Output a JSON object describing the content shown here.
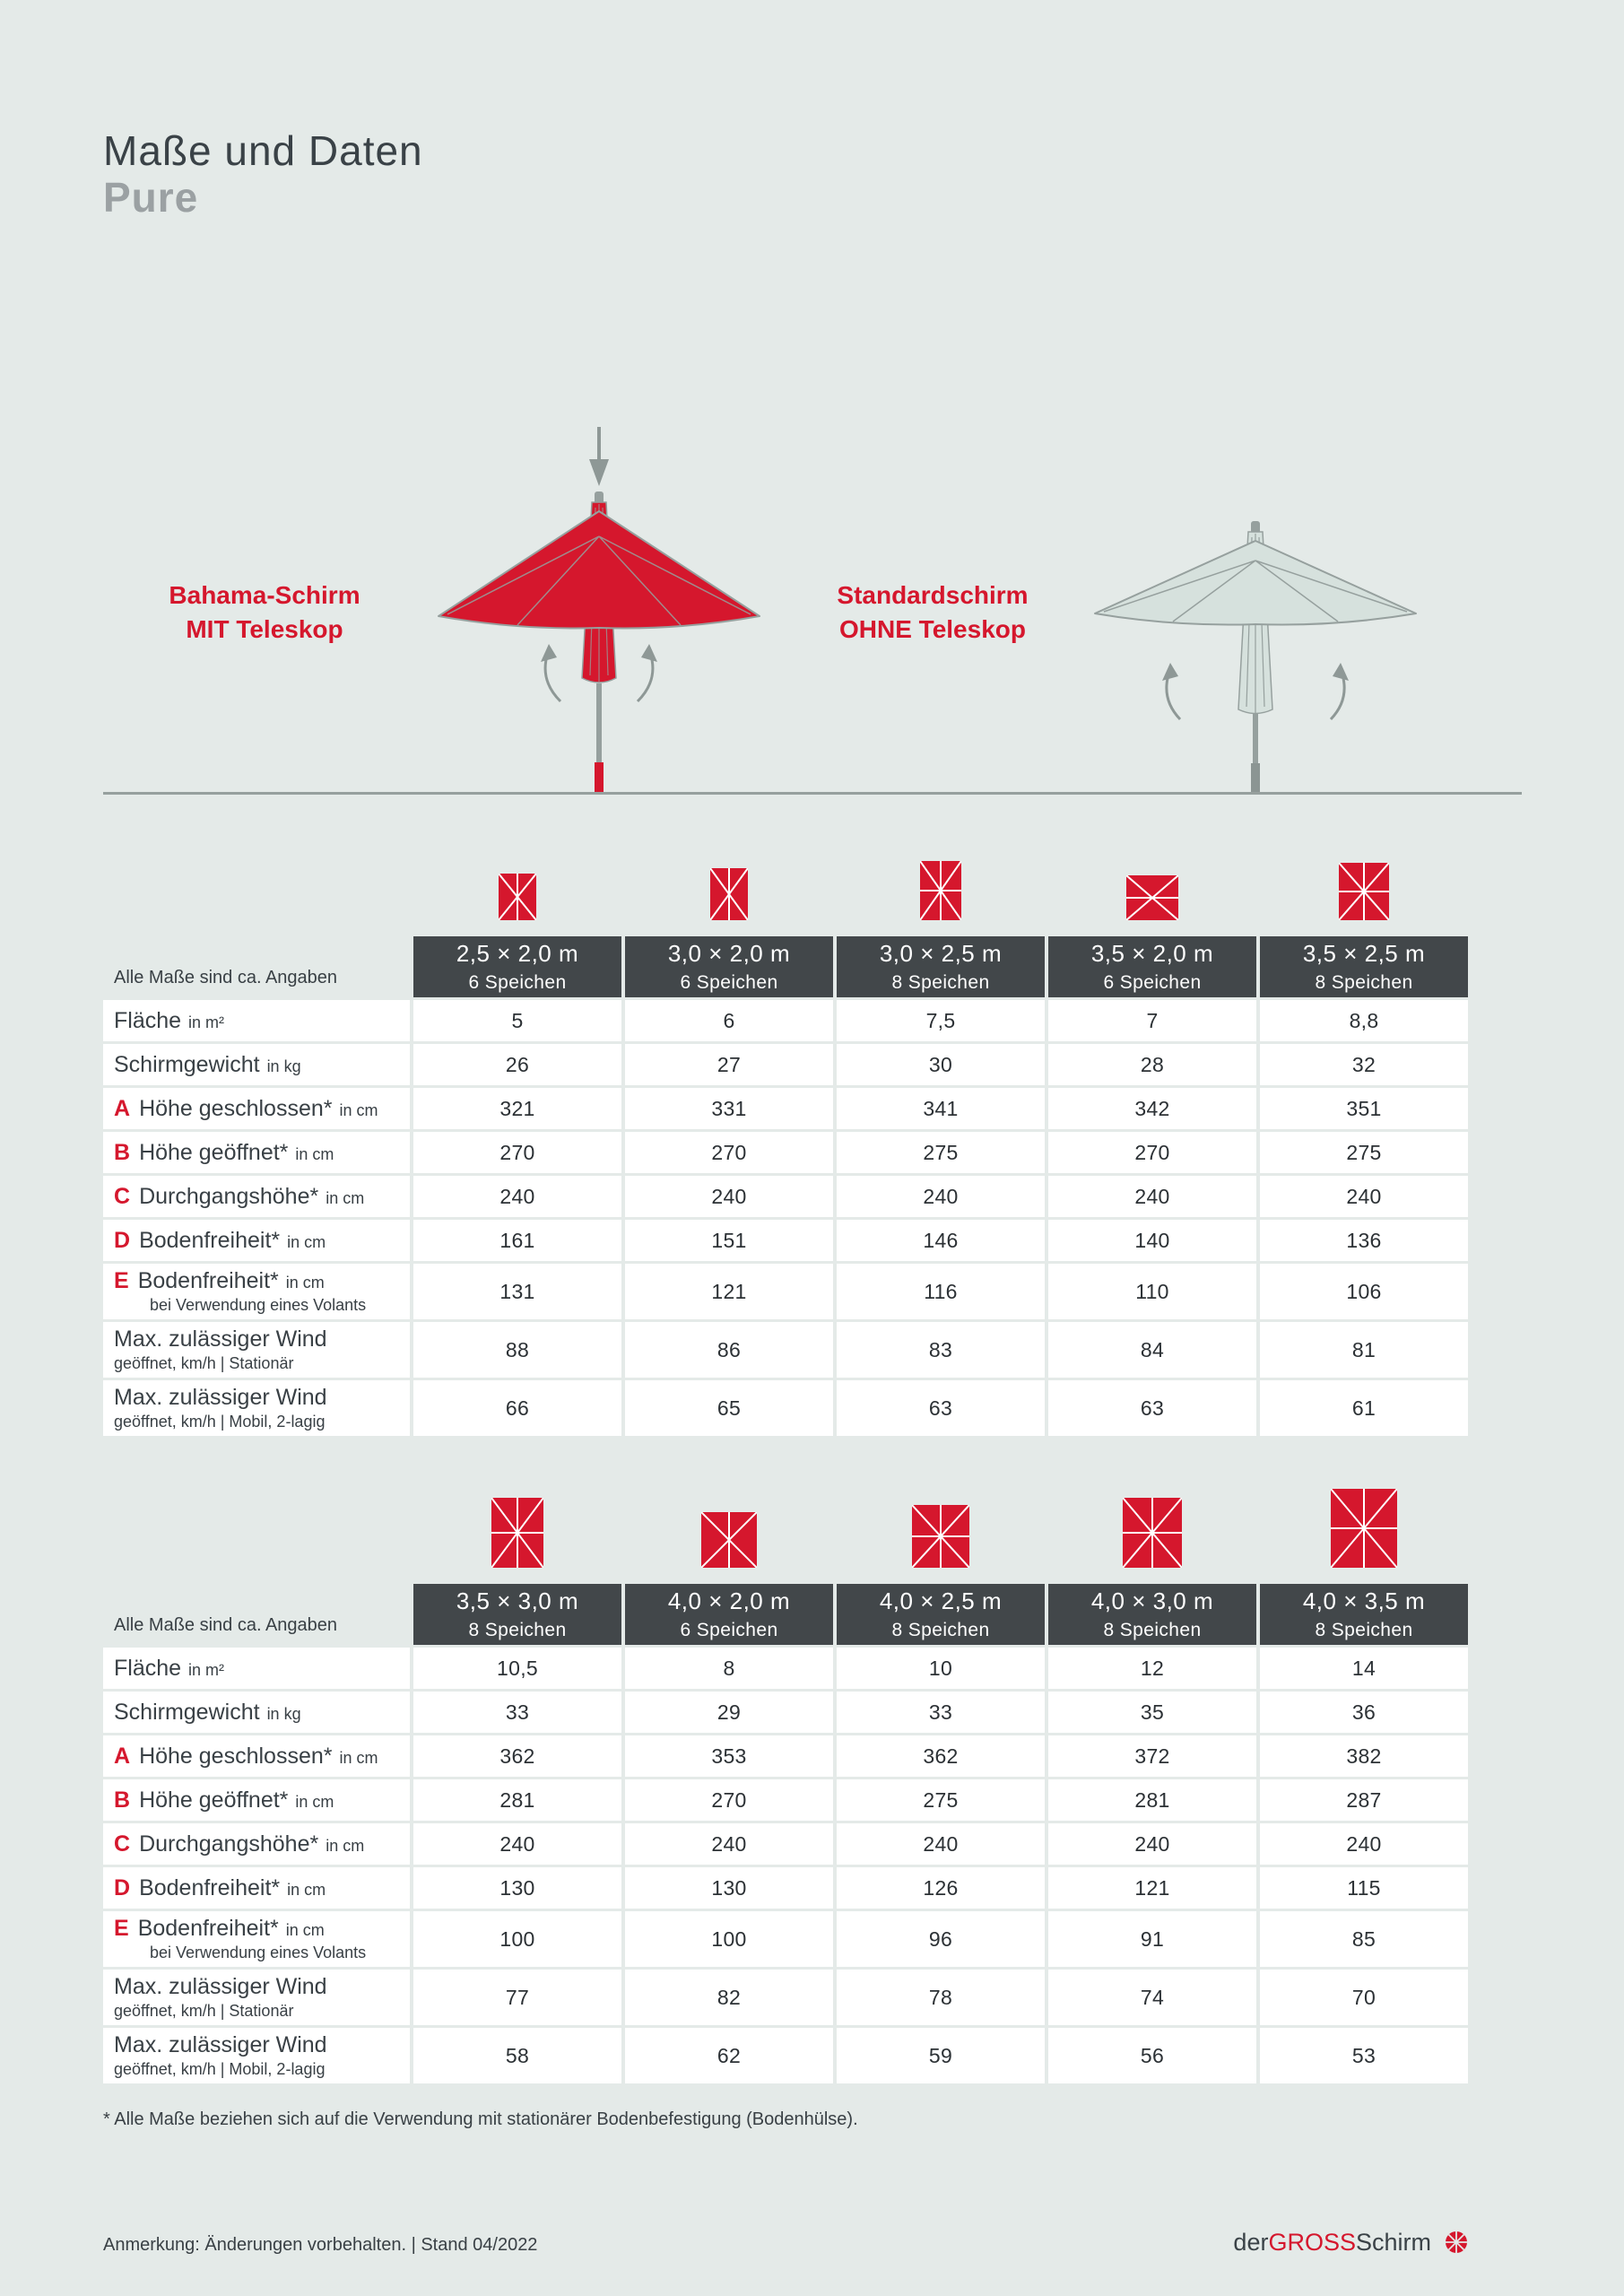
{
  "page": {
    "title": "Maße und Daten",
    "subtitle": "Pure",
    "footnote": "* Alle Maße beziehen sich auf die Verwendung mit stationärer Bodenbefestigung (Bodenhülse).",
    "footer_note": "Anmerkung: Änderungen vorbehalten.  |  Stand 04/2022",
    "brand": {
      "part1": "der ",
      "part2": "GROSS",
      "part3": " Schirm"
    }
  },
  "diagram": {
    "left_label_line1": "Bahama-Schirm",
    "left_label_line2": "MIT Teleskop",
    "right_label_line1": "Standardschirm",
    "right_label_line2": "OHNE Teleskop"
  },
  "colors": {
    "red": "#d5172d",
    "background": "#e4eae8",
    "header_bg": "#42474a",
    "subtitle_gray": "#9ba1a3",
    "umbrella_gray_fill": "#d6e1dd",
    "outline_gray": "#96a09e",
    "text_dark": "#394045"
  },
  "tables": [
    {
      "note": "Alle Maße sind ca. Angaben",
      "columns": [
        {
          "size": "2,5 × 2,0 m",
          "spokes": "6 Speichen",
          "spoke_count": 6,
          "icon": {
            "w": 42,
            "h": 52
          }
        },
        {
          "size": "3,0 × 2,0 m",
          "spokes": "6 Speichen",
          "spoke_count": 6,
          "icon": {
            "w": 42,
            "h": 58
          }
        },
        {
          "size": "3,0 × 2,5 m",
          "spokes": "8 Speichen",
          "spoke_count": 8,
          "icon": {
            "w": 46,
            "h": 66
          }
        },
        {
          "size": "3,5 × 2,0 m",
          "spokes": "6 Speichen",
          "spoke_count": 6,
          "icon": {
            "w": 58,
            "h": 50
          }
        },
        {
          "size": "3,5 × 2,5 m",
          "spokes": "8 Speichen",
          "spoke_count": 8,
          "icon": {
            "w": 56,
            "h": 64
          }
        }
      ],
      "rows": [
        {
          "letter": "",
          "label": "Fläche",
          "unit": "in m²",
          "sub": "",
          "values": [
            "5",
            "6",
            "7,5",
            "7",
            "8,8"
          ]
        },
        {
          "letter": "",
          "label": "Schirmgewicht",
          "unit": "in kg",
          "sub": "",
          "values": [
            "26",
            "27",
            "30",
            "28",
            "32"
          ]
        },
        {
          "letter": "A",
          "label": "Höhe geschlossen*",
          "unit": "in cm",
          "sub": "",
          "values": [
            "321",
            "331",
            "341",
            "342",
            "351"
          ]
        },
        {
          "letter": "B",
          "label": "Höhe geöffnet*",
          "unit": "in cm",
          "sub": "",
          "values": [
            "270",
            "270",
            "275",
            "270",
            "275"
          ]
        },
        {
          "letter": "C",
          "label": "Durchgangshöhe*",
          "unit": "in cm",
          "sub": "",
          "values": [
            "240",
            "240",
            "240",
            "240",
            "240"
          ]
        },
        {
          "letter": "D",
          "label": "Bodenfreiheit*",
          "unit": "in cm",
          "sub": "",
          "values": [
            "161",
            "151",
            "146",
            "140",
            "136"
          ]
        },
        {
          "letter": "E",
          "label": "Bodenfreiheit*",
          "unit": "in cm",
          "sub": "bei Verwendung eines Volants",
          "values": [
            "131",
            "121",
            "116",
            "110",
            "106"
          ]
        },
        {
          "letter": "",
          "label": "Max. zulässiger Wind",
          "unit": "",
          "sub": "geöffnet, km/h | Stationär",
          "values": [
            "88",
            "86",
            "83",
            "84",
            "81"
          ]
        },
        {
          "letter": "",
          "label": "Max. zulässiger Wind",
          "unit": "",
          "sub": "geöffnet, km/h | Mobil, 2-lagig",
          "values": [
            "66",
            "65",
            "63",
            "63",
            "61"
          ]
        }
      ]
    },
    {
      "note": "Alle Maße sind ca. Angaben",
      "columns": [
        {
          "size": "3,5 × 3,0 m",
          "spokes": "8 Speichen",
          "spoke_count": 8,
          "icon": {
            "w": 58,
            "h": 78
          }
        },
        {
          "size": "4,0 × 2,0 m",
          "spokes": "6 Speichen",
          "spoke_count": 6,
          "icon": {
            "w": 62,
            "h": 62
          }
        },
        {
          "size": "4,0 × 2,5 m",
          "spokes": "8 Speichen",
          "spoke_count": 8,
          "icon": {
            "w": 64,
            "h": 70
          }
        },
        {
          "size": "4,0 × 3,0 m",
          "spokes": "8 Speichen",
          "spoke_count": 8,
          "icon": {
            "w": 66,
            "h": 78
          }
        },
        {
          "size": "4,0 × 3,5 m",
          "spokes": "8 Speichen",
          "spoke_count": 8,
          "icon": {
            "w": 74,
            "h": 88
          }
        }
      ],
      "rows": [
        {
          "letter": "",
          "label": "Fläche",
          "unit": "in m²",
          "sub": "",
          "values": [
            "10,5",
            "8",
            "10",
            "12",
            "14"
          ]
        },
        {
          "letter": "",
          "label": "Schirmgewicht",
          "unit": "in kg",
          "sub": "",
          "values": [
            "33",
            "29",
            "33",
            "35",
            "36"
          ]
        },
        {
          "letter": "A",
          "label": "Höhe geschlossen*",
          "unit": "in cm",
          "sub": "",
          "values": [
            "362",
            "353",
            "362",
            "372",
            "382"
          ]
        },
        {
          "letter": "B",
          "label": "Höhe geöffnet*",
          "unit": "in cm",
          "sub": "",
          "values": [
            "281",
            "270",
            "275",
            "281",
            "287"
          ]
        },
        {
          "letter": "C",
          "label": "Durchgangshöhe*",
          "unit": "in cm",
          "sub": "",
          "values": [
            "240",
            "240",
            "240",
            "240",
            "240"
          ]
        },
        {
          "letter": "D",
          "label": "Bodenfreiheit*",
          "unit": "in cm",
          "sub": "",
          "values": [
            "130",
            "130",
            "126",
            "121",
            "115"
          ]
        },
        {
          "letter": "E",
          "label": "Bodenfreiheit*",
          "unit": "in cm",
          "sub": "bei Verwendung eines Volants",
          "values": [
            "100",
            "100",
            "96",
            "91",
            "85"
          ]
        },
        {
          "letter": "",
          "label": "Max. zulässiger Wind",
          "unit": "",
          "sub": "geöffnet, km/h | Stationär",
          "values": [
            "77",
            "82",
            "78",
            "74",
            "70"
          ]
        },
        {
          "letter": "",
          "label": "Max. zulässiger Wind",
          "unit": "",
          "sub": "geöffnet, km/h | Mobil, 2-lagig",
          "values": [
            "58",
            "62",
            "59",
            "56",
            "53"
          ]
        }
      ]
    }
  ]
}
